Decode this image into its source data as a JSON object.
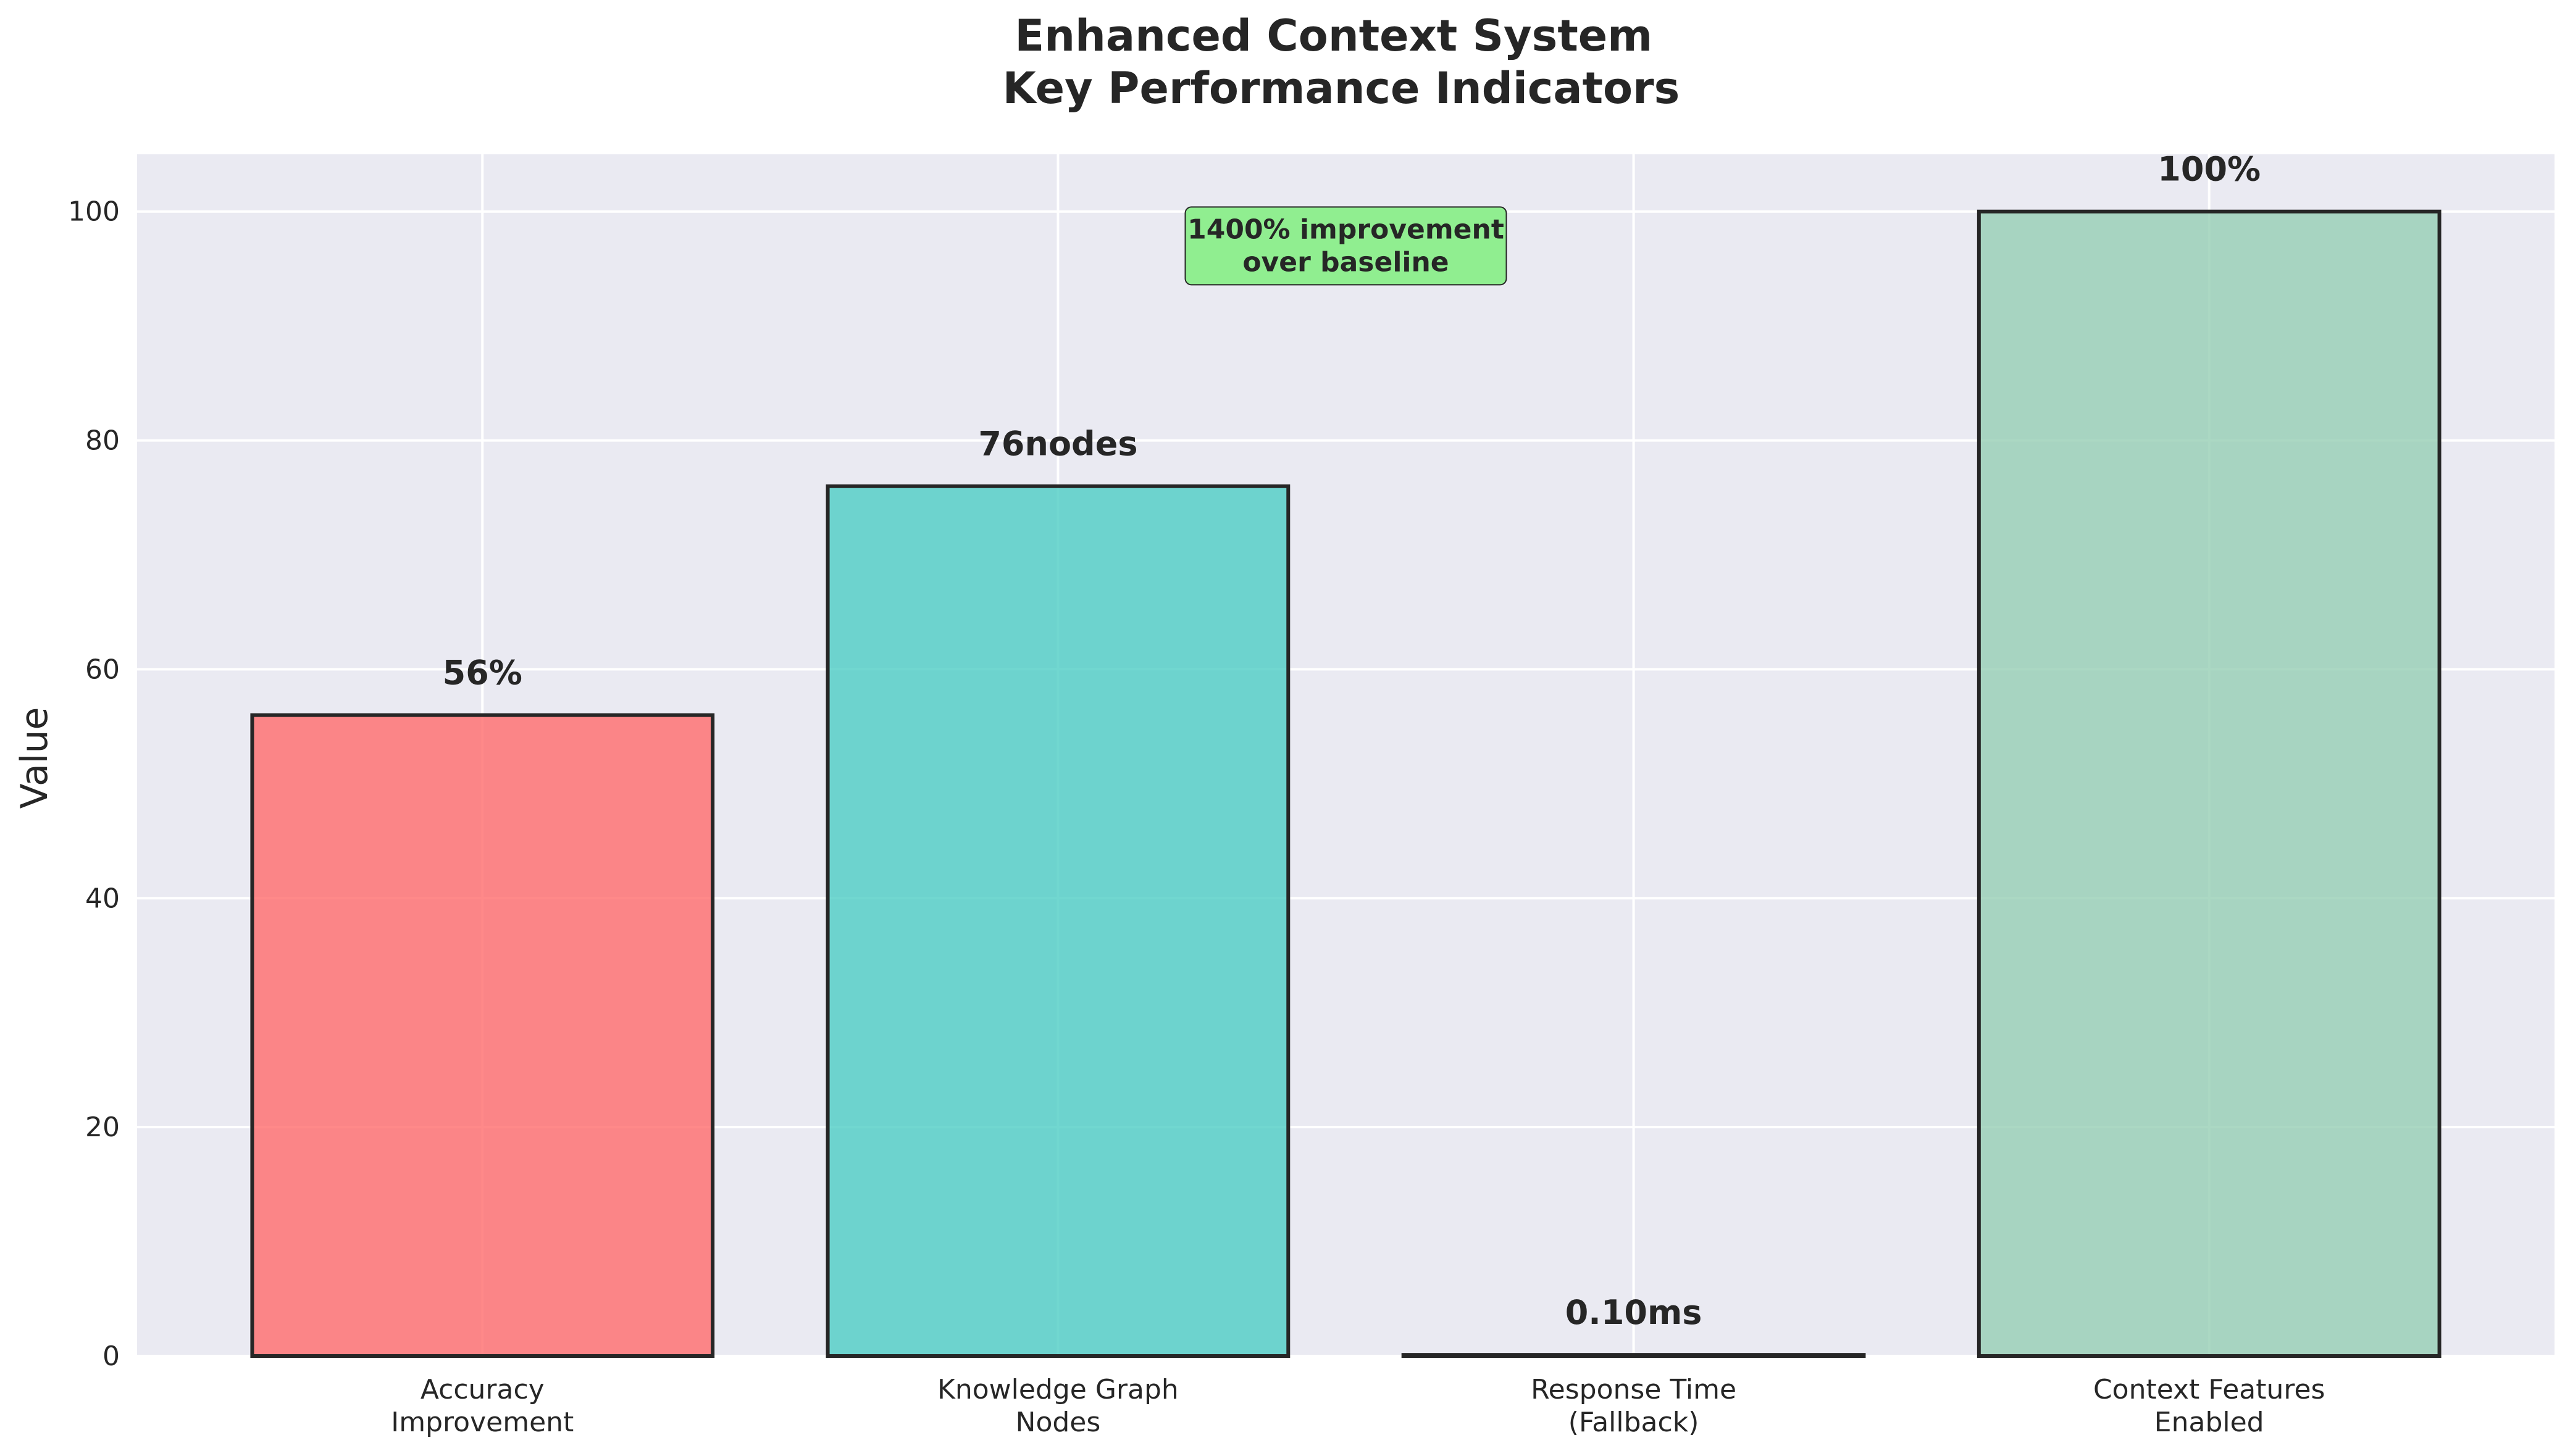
{
  "chart_data": {
    "type": "bar",
    "title": [
      "Enhanced Context System",
      "Key Performance Indicators"
    ],
    "ylabel": "Value",
    "xlabel": "",
    "ylim": [
      0,
      105
    ],
    "yticks": [
      0,
      20,
      40,
      60,
      80,
      100
    ],
    "grid": true,
    "categories": [
      [
        "Accuracy",
        "Improvement"
      ],
      [
        "Knowledge Graph",
        "Nodes"
      ],
      [
        "Response Time",
        "(Fallback)"
      ],
      [
        "Context Features",
        "Enabled"
      ]
    ],
    "values": [
      56,
      76,
      0.1,
      100
    ],
    "value_labels": [
      "56%",
      "76nodes",
      "0.10ms",
      "100%"
    ],
    "colors": [
      "#ff6b6b",
      "#4ecdc4",
      "#45b7d1",
      "#96ceb4"
    ],
    "annotation": {
      "lines": [
        "1400% improvement",
        "over baseline"
      ],
      "color": "#90ee90",
      "x": 1.5,
      "y": 97
    }
  }
}
